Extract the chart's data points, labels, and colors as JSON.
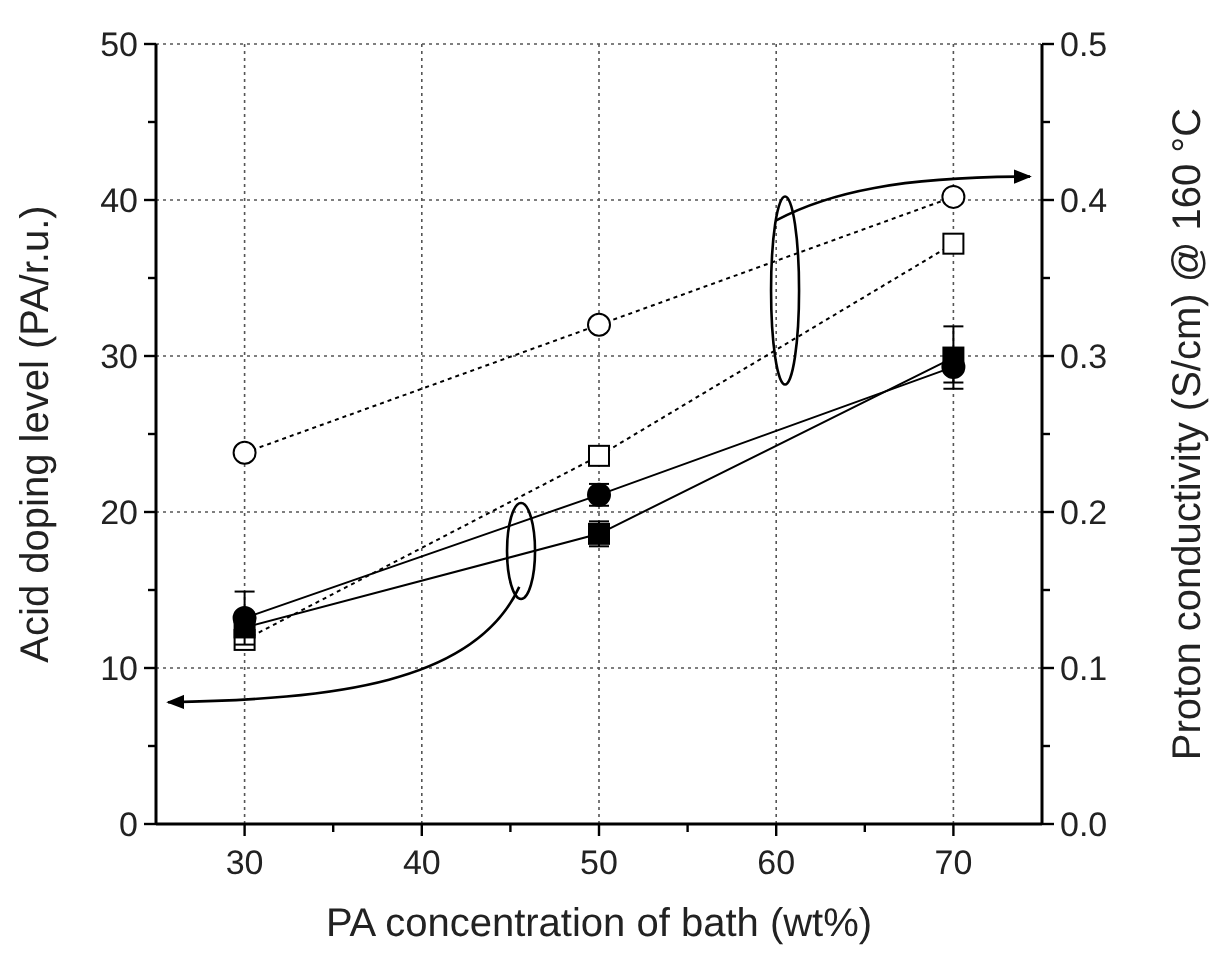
{
  "chart_data": {
    "type": "line",
    "xlabel": "PA concentration of bath (wt%)",
    "ylabel": "Acid doping level (PA/r.u.)",
    "y2label": "Proton conductivity (S/cm) @ 160 °C",
    "x": [
      30,
      50,
      70
    ],
    "series": [
      {
        "color": "#000000",
        "marker": "circle",
        "line_style": "solid",
        "values": [
          13.2,
          21.1,
          29.3
        ],
        "errors": [
          1.7,
          0.7,
          1
        ]
      },
      {
        "color": "#000000",
        "marker": "square",
        "line_style": "solid",
        "values": [
          12.6,
          18.6,
          29.9
        ],
        "errors": [
          null,
          0.8,
          2
        ]
      },
      {
        "color": "#000000",
        "marker": "circle",
        "line_style": "dotted",
        "axis": "y2",
        "values": [
          0.238,
          0.32,
          0.402
        ]
      },
      {
        "color": "#000000",
        "marker": "square",
        "line_style": "dotted",
        "axis": "y2",
        "values": [
          0.118,
          0.236,
          0.372
        ]
      }
    ],
    "xlim": [
      25,
      75
    ],
    "xticks": [
      30,
      {
        "value": 35,
        "label": null
      },
      40,
      {
        "value": 45,
        "label": null
      },
      50,
      {
        "value": 55,
        "label": null
      },
      60,
      {
        "value": 65,
        "label": null
      },
      70
    ],
    "ylim": [
      0,
      50
    ],
    "yticks": [
      0,
      {
        "value": 5,
        "label": null
      },
      10,
      {
        "value": 15,
        "label": null
      },
      20,
      {
        "value": 25,
        "label": null
      },
      30,
      {
        "value": 35,
        "label": null
      },
      40,
      {
        "value": 45,
        "label": null
      },
      50
    ],
    "y2lim": [
      0,
      0.5
    ],
    "y2ticks": [
      {
        "value": 0,
        "label": "0.0"
      },
      {
        "value": 0.05,
        "label": null
      },
      0.1,
      {
        "value": 0.15,
        "label": null
      },
      0.2,
      {
        "value": 0.25,
        "label": null
      },
      0.3,
      {
        "value": 0.35,
        "label": null
      },
      0.4,
      {
        "value": 0.45,
        "label": null
      },
      0.5
    ],
    "grid": true
  }
}
